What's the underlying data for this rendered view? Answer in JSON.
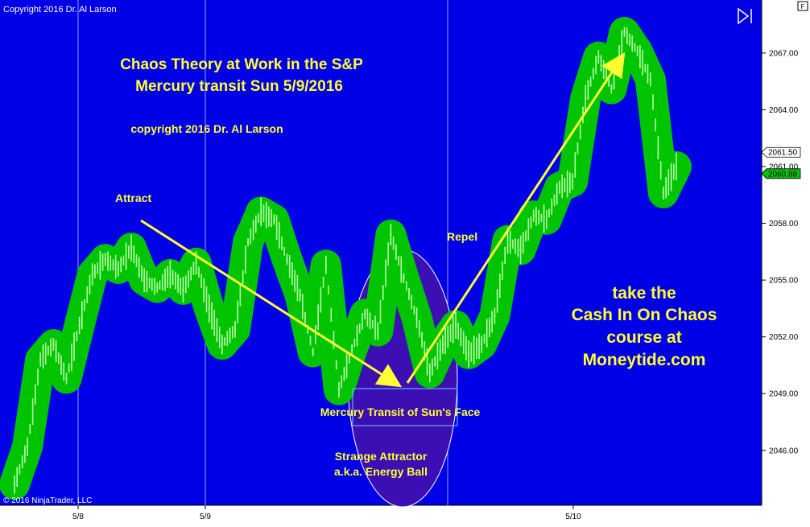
{
  "window": {
    "copyright": "Copyright 2016 Dr. Al Larson",
    "corner_badge": "F",
    "footer_credit": "© 2016 NinjaTrader, LLC"
  },
  "annotations": {
    "title_line1": "Chaos Theory at Work in the S&P",
    "title_line2": "Mercury transit Sun 5/9/2016",
    "copyright_note": "copyright 2016 Dr. Al Larson",
    "attract": "Attract",
    "repel": "Repel",
    "transit": "Mercury Transit of Sun's Face",
    "strange_line1": "Strange Attractor",
    "strange_line2": "a.k.a. Energy Ball",
    "ad_line1": "take the",
    "ad_line2": "Cash In On Chaos",
    "ad_line3": "course at",
    "ad_line4": "Moneytide.com"
  },
  "colors": {
    "background": "#0000e6",
    "price_band": "#00c400",
    "price_bars": "#b8ffa6",
    "annotation": "#ffff33",
    "axis_panel": "#ffffff",
    "ellipse_fill": "#3c0fb4"
  },
  "chart_data": {
    "type": "line",
    "y_ticks": [
      "2046.00",
      "2049.00",
      "2052.00",
      "2055.00",
      "2058.00",
      "2061.00",
      "2064.00",
      "2067.00"
    ],
    "ylim": [
      2043.1,
      2069.8
    ],
    "x_ticks": [
      "5/8",
      "5/9",
      "5/10"
    ],
    "price_labels": [
      {
        "label": "2061.50",
        "value": 2061.5
      },
      {
        "label": "2060.88",
        "value": 2060.88
      }
    ],
    "series": [
      {
        "x": [
          0,
          0.1,
          0.2,
          0.3,
          0.4,
          0.5,
          0.6,
          0.7,
          0.8,
          0.9,
          1.0,
          1.1,
          1.2,
          1.3,
          1.4,
          1.5,
          1.6,
          1.7,
          1.8,
          1.9,
          2.0,
          2.1,
          2.2,
          2.3,
          2.4,
          2.5,
          2.6,
          2.7,
          2.8,
          2.9,
          3.0,
          3.1,
          3.2,
          3.3,
          3.4,
          3.5,
          3.6,
          3.7,
          3.8,
          3.9,
          4.0,
          4.1,
          4.2,
          4.3,
          4.4,
          4.5,
          4.6,
          4.7,
          4.8,
          4.9,
          5.0,
          5.1
        ],
        "values": [
          2044.2,
          2046.2,
          2050.8,
          2051.6,
          2049.8,
          2052.6,
          2055.3,
          2056.1,
          2055.6,
          2056.7,
          2055.0,
          2054.6,
          2055.3,
          2054.5,
          2055.9,
          2053.5,
          2051.6,
          2052.4,
          2057.0,
          2058.6,
          2058.2,
          2056.1,
          2054.2,
          2051.2,
          2055.8,
          2049.2,
          2051.3,
          2053.2,
          2052.3,
          2057.4,
          2055.1,
          2053.0,
          2050.1,
          2051.6,
          2052.6,
          2051.1,
          2051.6,
          2053.1,
          2057.1,
          2056.6,
          2058.4,
          2058.2,
          2059.9,
          2060.2,
          2064.6,
          2066.8,
          2065.1,
          2068.1,
          2067.1,
          2065.6,
          2059.6,
          2061.0
        ]
      }
    ],
    "grid": "vertical day separators"
  }
}
